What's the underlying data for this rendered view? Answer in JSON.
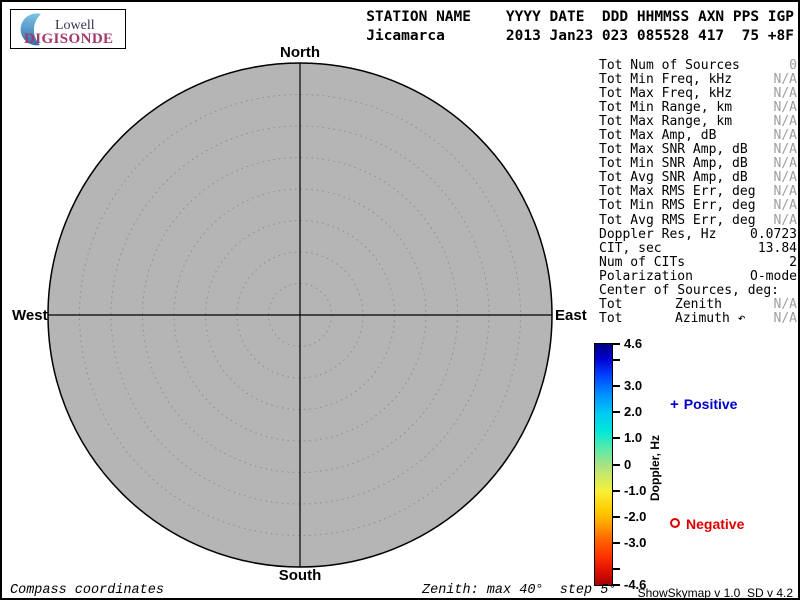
{
  "branding": {
    "name_top": "Lowell",
    "name_bottom": "DIGISONDE",
    "crescent_color_top": "#7fc2e6",
    "crescent_color_bottom": "#2f6fae"
  },
  "header": {
    "columns_line": "STATION NAME    YYYY DATE  DDD HHMMSS AXN PPS IGP",
    "values_line": "Jicamarca       2013 Jan23 023 085528 417  75 +8F"
  },
  "stats": {
    "rows": [
      {
        "label": "Tot Num of Sources",
        "value": "0",
        "na": true
      },
      {
        "label": "Tot Min Freq, kHz",
        "value": "N/A",
        "na": true
      },
      {
        "label": "Tot Max Freq, kHz",
        "value": "N/A",
        "na": true
      },
      {
        "label": "Tot Min Range, km",
        "value": "N/A",
        "na": true
      },
      {
        "label": "Tot Max Range, km",
        "value": "N/A",
        "na": true
      },
      {
        "label": "Tot Max Amp, dB",
        "value": "N/A",
        "na": true
      },
      {
        "label": "Tot Max SNR Amp, dB",
        "value": "N/A",
        "na": true
      },
      {
        "label": "Tot Min SNR Amp, dB",
        "value": "N/A",
        "na": true
      },
      {
        "label": "Tot Avg SNR Amp, dB",
        "value": "N/A",
        "na": true
      },
      {
        "label": "Tot Max RMS Err, deg",
        "value": "N/A",
        "na": true
      },
      {
        "label": "Tot Min RMS Err, deg",
        "value": "N/A",
        "na": true
      },
      {
        "label": "Tot Avg RMS Err, deg",
        "value": "N/A",
        "na": true
      },
      {
        "label": "Doppler Res, Hz",
        "value": "0.0723",
        "na": false
      },
      {
        "label": "CIT, sec",
        "value": "13.84",
        "na": false
      },
      {
        "label": "Num of CITs",
        "value": "2",
        "na": false
      },
      {
        "label": "Polarization",
        "value": "O-mode",
        "na": false
      },
      {
        "label": "Center of Sources, deg:",
        "value": "",
        "na": false
      },
      {
        "label": "Tot",
        "mid": "Zenith",
        "value": "N/A",
        "na": true
      },
      {
        "label": "Tot",
        "mid": "Azimuth ↶",
        "value": "N/A",
        "na": true
      }
    ]
  },
  "colorbar": {
    "label": "Doppler, Hz",
    "min": -4.6,
    "max": 4.6,
    "ticks": [
      {
        "v": 4.6,
        "t": "4.6"
      },
      {
        "v": 4.0,
        "t": ""
      },
      {
        "v": 3.0,
        "t": "3.0"
      },
      {
        "v": 2.0,
        "t": "2.0"
      },
      {
        "v": 1.0,
        "t": "1.0"
      },
      {
        "v": 0,
        "t": "0"
      },
      {
        "v": -1.0,
        "t": "-1.0"
      },
      {
        "v": -2.0,
        "t": "-2.0"
      },
      {
        "v": -3.0,
        "t": "-3.0"
      },
      {
        "v": -4.0,
        "t": ""
      },
      {
        "v": -4.6,
        "t": "-4.6"
      }
    ],
    "gradient": [
      [
        "0%",
        "#000080"
      ],
      [
        "6%",
        "#0000d0"
      ],
      [
        "13%",
        "#0040ff"
      ],
      [
        "21%",
        "#0090ff"
      ],
      [
        "29%",
        "#00ccf2"
      ],
      [
        "36%",
        "#00e6dc"
      ],
      [
        "43%",
        "#52ebaa"
      ],
      [
        "50%",
        "#a8e285"
      ],
      [
        "57%",
        "#dcec55"
      ],
      [
        "61%",
        "#f8f038"
      ],
      [
        "69%",
        "#ffcc00"
      ],
      [
        "74%",
        "#ffa800"
      ],
      [
        "81%",
        "#ff6600"
      ],
      [
        "88%",
        "#ff3300"
      ],
      [
        "94%",
        "#e01000"
      ],
      [
        "100%",
        "#a60000"
      ]
    ]
  },
  "legend": {
    "positive": {
      "marker": "+",
      "label": "Positive",
      "color": "#0000cc"
    },
    "negative": {
      "marker": "o",
      "label": "Negative",
      "color": "#dd0000"
    }
  },
  "skymap": {
    "north": "North",
    "south": "South",
    "west": "West",
    "east": "East",
    "max_zenith_deg": 40,
    "step_deg": 5,
    "disc_fill": "#b5b5b5",
    "ring_color": "#8c8c8c"
  },
  "footer": {
    "left": "Compass coordinates",
    "center": "Zenith: max 40°  step 5°",
    "right": "ShowSkymap v 1.0  SD v 4.2"
  },
  "colors": {
    "na_text": "#9e9e9e",
    "brand_magenta": "#a23a68",
    "brand_navy": "#33334e"
  }
}
